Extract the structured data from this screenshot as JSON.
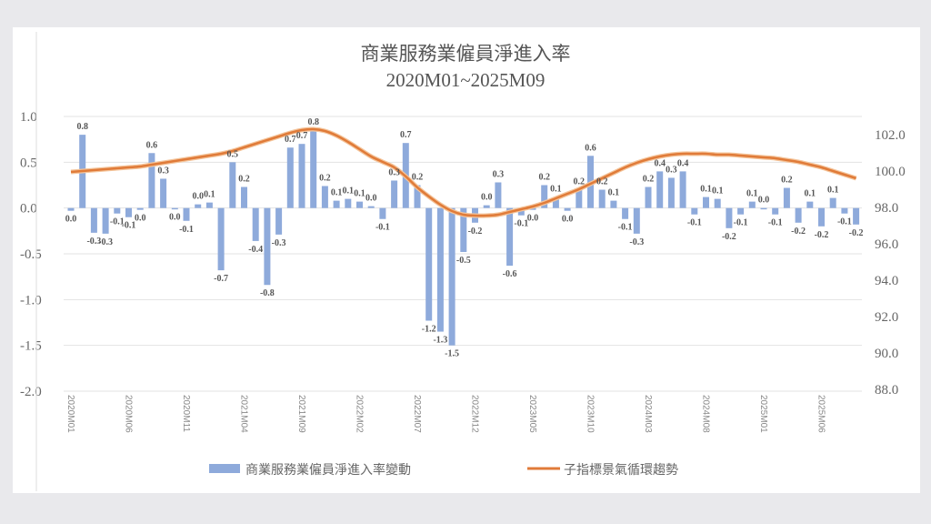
{
  "chart_data": {
    "type": "bar+line",
    "title": "商業服務業僱員淨進入率",
    "subtitle": "2020M01~2025M09",
    "left_axis": {
      "ylim": [
        -2.0,
        1.0
      ],
      "ticks": [
        "1.0",
        "0.5",
        "0.0",
        "-0.5",
        "-1.0",
        "-1.5",
        "-2.0"
      ]
    },
    "right_axis": {
      "ylim": [
        88.0,
        103.0
      ],
      "ticks": [
        "102.0",
        "100.0",
        "98.0",
        "96.0",
        "94.0",
        "92.0",
        "90.0",
        "88.0"
      ]
    },
    "grid": true,
    "legend_position": "bottom",
    "x_tick_labels": [
      "2020M01",
      "2020M06",
      "2020M11",
      "2021M04",
      "2021M09",
      "2022M02",
      "2022M07",
      "2022M12",
      "2023M05",
      "2023M10",
      "2024M03",
      "2024M08",
      "2025M01",
      "2025M06"
    ],
    "series": [
      {
        "name": "商業服務業僱員淨進入率變動",
        "type": "bar",
        "axis": "left",
        "color": "#8eaadb",
        "values": [
          -0.03,
          0.8,
          -0.27,
          -0.28,
          -0.06,
          -0.1,
          -0.02,
          0.6,
          0.32,
          -0.01,
          -0.14,
          0.04,
          0.06,
          -0.68,
          0.5,
          0.23,
          -0.36,
          -0.84,
          -0.29,
          0.66,
          0.7,
          0.85,
          0.24,
          0.08,
          0.1,
          0.07,
          0.02,
          -0.12,
          0.3,
          0.71,
          0.25,
          -1.23,
          -1.35,
          -1.5,
          -0.48,
          -0.16,
          0.03,
          0.28,
          -0.63,
          -0.08,
          -0.02,
          0.25,
          0.12,
          -0.03,
          0.2,
          0.57,
          0.2,
          0.08,
          -0.12,
          -0.28,
          0.23,
          0.4,
          0.33,
          0.4,
          -0.07,
          0.12,
          0.1,
          -0.22,
          -0.07,
          0.07,
          0.0,
          -0.07,
          0.22,
          -0.16,
          0.07,
          -0.2,
          0.11,
          -0.06,
          -0.18
        ],
        "labels": [
          "0.0",
          "0.8",
          "-0.3",
          "-0.3",
          "-0.1",
          "-0.1",
          "0.0",
          "0.6",
          "0.3",
          "0.0",
          "-0.1",
          "0.0",
          "0.1",
          "-0.7",
          "0.5",
          "0.2",
          "-0.4",
          "-0.8",
          "-0.3",
          "0.7",
          "0.7",
          "0.8",
          "0.2",
          "0.1",
          "0.1",
          "0.1",
          "0.0",
          "-0.1",
          "0.3",
          "0.7",
          "0.2",
          "-1.2",
          "-1.3",
          "-1.5",
          "-0.5",
          "-0.2",
          "0.0",
          "0.3",
          "-0.6",
          "-0.1",
          "0.0",
          "0.2",
          "0.1",
          "0.0",
          "0.2",
          "0.6",
          "0.2",
          "0.1",
          "-0.1",
          "-0.3",
          "0.2",
          "0.4",
          "0.3",
          "0.4",
          "-0.1",
          "0.1",
          "0.1",
          "-0.2",
          "-0.1",
          "0.1",
          "0.0",
          "-0.1",
          "0.2",
          "-0.2",
          "0.1",
          "-0.2",
          "0.1",
          "-0.1",
          "-0.2"
        ]
      },
      {
        "name": "子指標景氣循環趨勢",
        "type": "line",
        "axis": "right",
        "color": "#e07b39",
        "values": [
          99.95,
          100.0,
          100.05,
          100.1,
          100.15,
          100.2,
          100.25,
          100.35,
          100.45,
          100.55,
          100.65,
          100.75,
          100.85,
          100.95,
          101.1,
          101.3,
          101.5,
          101.7,
          101.9,
          102.1,
          102.25,
          102.3,
          102.2,
          101.95,
          101.6,
          101.2,
          100.8,
          100.5,
          100.2,
          99.7,
          99.1,
          98.6,
          98.15,
          97.8,
          97.6,
          97.55,
          97.55,
          97.6,
          97.75,
          97.9,
          98.05,
          98.25,
          98.5,
          98.75,
          99.0,
          99.3,
          99.6,
          99.9,
          100.2,
          100.45,
          100.65,
          100.8,
          100.9,
          100.95,
          100.95,
          100.95,
          100.9,
          100.9,
          100.85,
          100.8,
          100.75,
          100.7,
          100.6,
          100.5,
          100.35,
          100.2,
          100.0,
          99.8,
          99.6
        ]
      }
    ]
  }
}
